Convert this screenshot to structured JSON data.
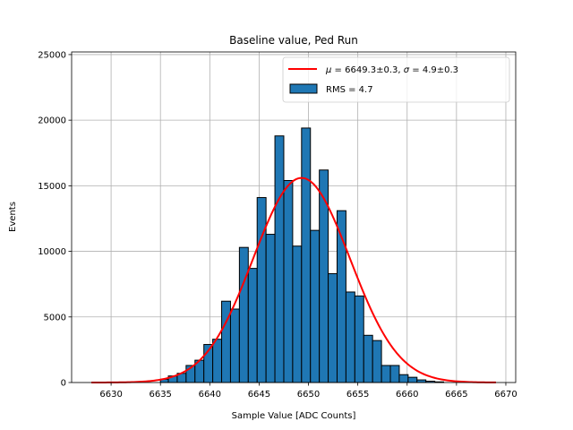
{
  "chart_data": {
    "type": "bar",
    "title": "Baseline value, Ped Run",
    "xlabel": "Sample Value [ADC Counts]",
    "ylabel": "Events",
    "xlim": [
      6626,
      6671
    ],
    "ylim": [
      0,
      25200
    ],
    "xticks": [
      6630,
      6635,
      6640,
      6645,
      6650,
      6655,
      6660,
      6665,
      6670
    ],
    "yticks": [
      0,
      5000,
      10000,
      15000,
      20000,
      25000
    ],
    "grid": true,
    "legend_position": "top-right",
    "histogram": {
      "name": "RMS = 4.7",
      "color": "#1f77b4",
      "bins": [
        {
          "x0": 6635.0,
          "x1": 6635.8,
          "count": 250
        },
        {
          "x0": 6635.8,
          "x1": 6636.7,
          "count": 500
        },
        {
          "x0": 6636.7,
          "x1": 6637.6,
          "count": 700
        },
        {
          "x0": 6637.6,
          "x1": 6638.5,
          "count": 1300
        },
        {
          "x0": 6638.5,
          "x1": 6639.4,
          "count": 1700
        },
        {
          "x0": 6639.4,
          "x1": 6640.3,
          "count": 2900
        },
        {
          "x0": 6640.3,
          "x1": 6641.2,
          "count": 3300
        },
        {
          "x0": 6641.2,
          "x1": 6642.1,
          "count": 6200
        },
        {
          "x0": 6642.1,
          "x1": 6643.0,
          "count": 5600
        },
        {
          "x0": 6643.0,
          "x1": 6643.9,
          "count": 10300
        },
        {
          "x0": 6643.9,
          "x1": 6644.8,
          "count": 8700
        },
        {
          "x0": 6644.8,
          "x1": 6645.7,
          "count": 14100
        },
        {
          "x0": 6645.7,
          "x1": 6646.6,
          "count": 11300
        },
        {
          "x0": 6646.6,
          "x1": 6647.5,
          "count": 18800
        },
        {
          "x0": 6647.5,
          "x1": 6648.4,
          "count": 15400
        },
        {
          "x0": 6648.4,
          "x1": 6649.3,
          "count": 10400
        },
        {
          "x0": 6649.3,
          "x1": 6650.2,
          "count": 19400
        },
        {
          "x0": 6650.2,
          "x1": 6651.1,
          "count": 11600
        },
        {
          "x0": 6651.1,
          "x1": 6652.0,
          "count": 16200
        },
        {
          "x0": 6652.0,
          "x1": 6652.9,
          "count": 8300
        },
        {
          "x0": 6652.9,
          "x1": 6653.8,
          "count": 13100
        },
        {
          "x0": 6653.8,
          "x1": 6654.7,
          "count": 6900
        },
        {
          "x0": 6654.7,
          "x1": 6655.6,
          "count": 6600
        },
        {
          "x0": 6655.6,
          "x1": 6656.5,
          "count": 3600
        },
        {
          "x0": 6656.5,
          "x1": 6657.4,
          "count": 3200
        },
        {
          "x0": 6657.4,
          "x1": 6658.3,
          "count": 1300
        },
        {
          "x0": 6658.3,
          "x1": 6659.2,
          "count": 1300
        },
        {
          "x0": 6659.2,
          "x1": 6660.1,
          "count": 600
        },
        {
          "x0": 6660.1,
          "x1": 6661.0,
          "count": 400
        },
        {
          "x0": 6661.0,
          "x1": 6661.9,
          "count": 200
        },
        {
          "x0": 6661.9,
          "x1": 6662.8,
          "count": 100
        },
        {
          "x0": 6662.8,
          "x1": 6663.7,
          "count": 50
        }
      ]
    },
    "fit": {
      "name": "$\\mu = 6649.3\\pm0.3$, $\\sigma = 4.9\\pm0.3$",
      "label_mu": "μ",
      "label_sigma": "σ",
      "label_text": "= 6649.3±0.3, ",
      "label_text2": "= 4.9±0.3",
      "color": "#ff0000",
      "mu": 6649.3,
      "sigma": 4.9,
      "amplitude": 15600,
      "x_range": [
        6628,
        6669
      ]
    },
    "legend": {
      "fit_label_parts": [
        "μ",
        " = 6649.3±0.3, ",
        "σ",
        " = 4.9±0.3"
      ],
      "hist_label": "RMS = 4.7"
    }
  }
}
